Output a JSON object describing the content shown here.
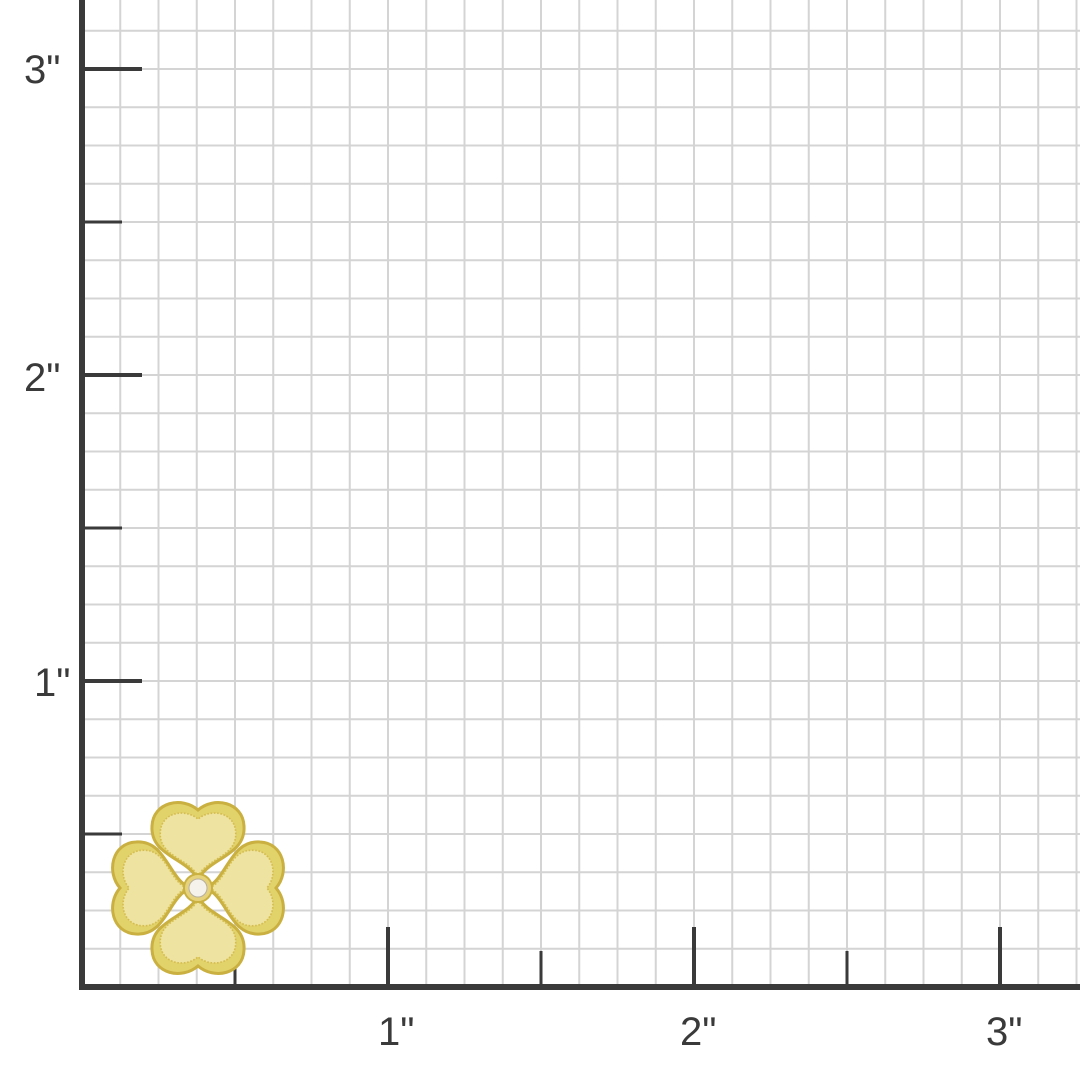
{
  "ruler": {
    "unit_mark": "\"",
    "y_labels": [
      {
        "value": 3,
        "text": "3\""
      },
      {
        "value": 2,
        "text": "2\""
      },
      {
        "value": 1,
        "text": "1\""
      }
    ],
    "x_labels": [
      {
        "value": 1,
        "text": "1\""
      },
      {
        "value": 2,
        "text": "2\""
      },
      {
        "value": 3,
        "text": "3\""
      }
    ],
    "grid_divisions_per_inch": 8,
    "axis_color": "#3a3a3a",
    "grid_color": "#d4d4d4"
  },
  "product": {
    "icon": "four-leaf-clover-pendant",
    "metal_color": "#e2d26a",
    "stone": "diamond",
    "width_in": 0.6,
    "height_in": 0.6
  }
}
